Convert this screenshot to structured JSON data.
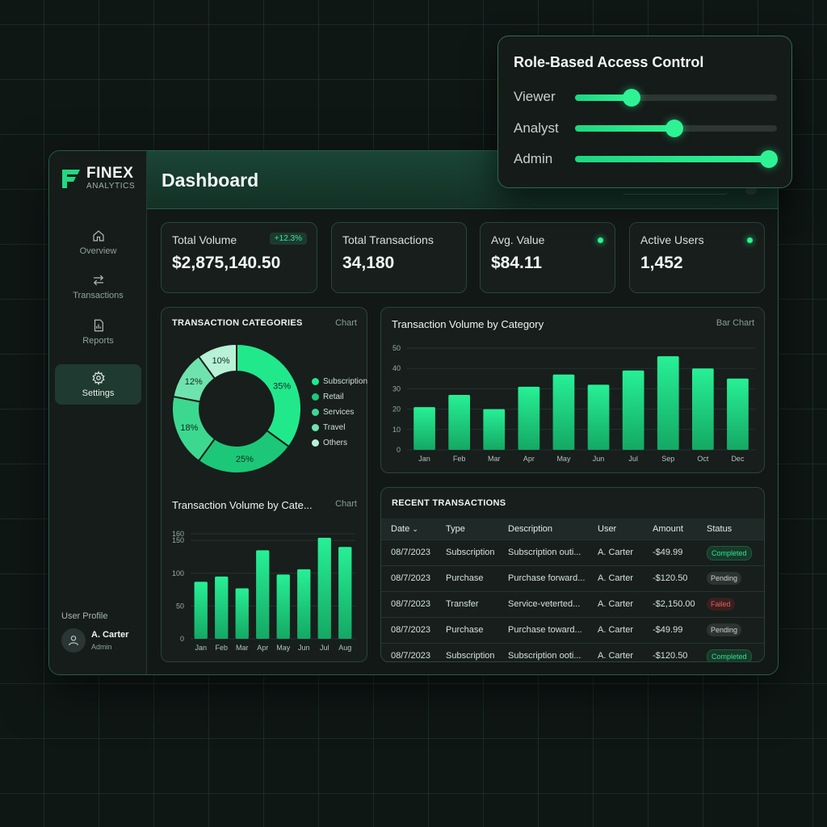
{
  "brand": {
    "name": "FINEX",
    "sub": "ANALYTICS",
    "accent": "#2ef394"
  },
  "nav": [
    {
      "label": "Overview",
      "icon": "home-icon"
    },
    {
      "label": "Transactions",
      "icon": "arrows-icon"
    },
    {
      "label": "Reports",
      "icon": "report-icon"
    },
    {
      "label": "Settings",
      "icon": "gear-icon",
      "active": true
    }
  ],
  "profile": {
    "section_label": "User Profile",
    "name": "A. Carter",
    "role": "Admin"
  },
  "header": {
    "title": "Dashboard"
  },
  "kpis": [
    {
      "label": "Total Volume",
      "value": "$2,875,140.50",
      "badge": "+12.3%"
    },
    {
      "label": "Total Transactions",
      "value": "34,180"
    },
    {
      "label": "Avg. Value",
      "value": "$84.11",
      "indicator": "green-dot"
    },
    {
      "label": "Active Users",
      "value": "1,452",
      "indicator": "green-dot"
    }
  ],
  "donut_card": {
    "title": "TRANSACTION CATEGORIES",
    "tag": "Chart"
  },
  "small_bar_card": {
    "title": "Transaction Volume by Cate...",
    "tag": "Chart"
  },
  "big_bar_card": {
    "title": "Transaction Volume by Category",
    "tag": "Bar Chart"
  },
  "rbac": {
    "title": "Role-Based Access Control",
    "roles": [
      {
        "label": "Viewer",
        "level": 0.28
      },
      {
        "label": "Analyst",
        "level": 0.49
      },
      {
        "label": "Admin",
        "level": 0.96
      }
    ]
  },
  "transactions": {
    "title": "RECENT TRANSACTIONS",
    "columns": [
      "Date",
      "Type",
      "Description",
      "User",
      "Amount",
      "Status"
    ],
    "rows": [
      {
        "date": "08/7/2023",
        "type": "Subscription",
        "description": "Subscription outi...",
        "user": "A. Carter",
        "amount": "-$49.99",
        "status": "Completed"
      },
      {
        "date": "08/7/2023",
        "type": "Purchase",
        "description": "Purchase forward...",
        "user": "A. Carter",
        "amount": "-$120.50",
        "status": "Pending"
      },
      {
        "date": "08/7/2023",
        "type": "Transfer",
        "description": "Service-veterted...",
        "user": "A. Carter",
        "amount": "-$2,150.00",
        "status": "Failed"
      },
      {
        "date": "08/7/2023",
        "type": "Purchase",
        "description": "Purchase toward...",
        "user": "A. Carter",
        "amount": "-$49.99",
        "status": "Pending"
      },
      {
        "date": "08/7/2023",
        "type": "Subscription",
        "description": "Subscription ooti...",
        "user": "A. Carter",
        "amount": "-$120.50",
        "status": "Completed"
      }
    ]
  },
  "chart_data": [
    {
      "type": "pie",
      "title": "TRANSACTION CATEGORIES",
      "categories": [
        "Subscription",
        "Retail",
        "Services",
        "Travel",
        "Others"
      ],
      "values": [
        35,
        25,
        18,
        12,
        10
      ],
      "labels": [
        "35%",
        "25%",
        "18%",
        "12%",
        "10%"
      ],
      "colors": [
        "#22e88c",
        "#1cc877",
        "#3dd890",
        "#6fe3ad",
        "#b7f2d6"
      ],
      "legend": "right"
    },
    {
      "type": "bar",
      "title": "Transaction Volume by Cate...",
      "categories": [
        "Jan",
        "Feb",
        "Mar",
        "Apr",
        "May",
        "Jun",
        "Jul",
        "Aug"
      ],
      "values": [
        87,
        95,
        77,
        135,
        98,
        106,
        154,
        140
      ],
      "ylim": [
        0,
        160
      ],
      "yticks": [
        0,
        50,
        100,
        150,
        160
      ],
      "grid": true
    },
    {
      "type": "bar",
      "title": "Transaction Volume by Category",
      "categories": [
        "Jan",
        "Feb",
        "Mar",
        "Apr",
        "May",
        "Jun",
        "Jul",
        "Sep",
        "Oct",
        "Dec"
      ],
      "values": [
        21,
        27,
        20,
        31,
        37,
        32,
        39,
        46,
        40,
        35
      ],
      "ylim": [
        0,
        50
      ],
      "yticks": [
        0,
        10,
        20,
        30,
        40,
        50
      ],
      "grid": true
    }
  ]
}
